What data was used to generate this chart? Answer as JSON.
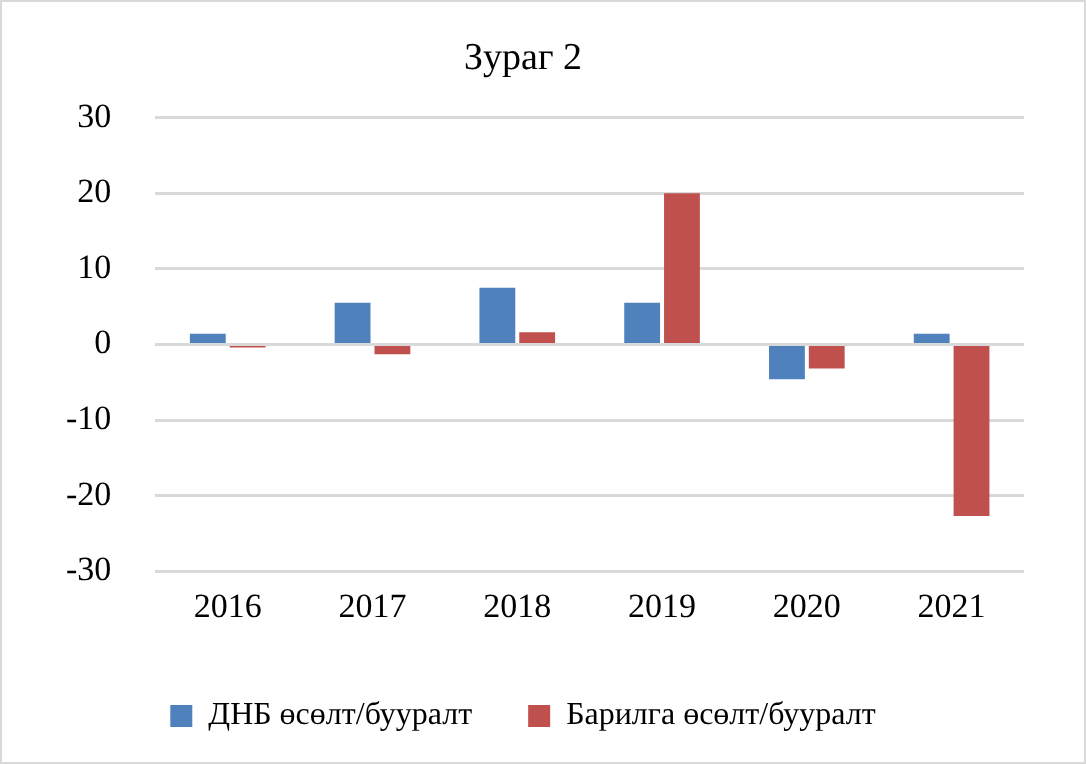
{
  "chart_data": {
    "type": "bar",
    "title": "Зураг 2",
    "categories": [
      "2016",
      "2017",
      "2018",
      "2019",
      "2020",
      "2021"
    ],
    "series": [
      {
        "name": "ДНБ өсөлт/бууралт",
        "color": "#4f81bd",
        "values": [
          1.4,
          5.5,
          7.5,
          5.5,
          -4.6,
          1.4
        ]
      },
      {
        "name": "Барилга өсөлт/бууралт",
        "color": "#c0504d",
        "values": [
          -0.4,
          -1.3,
          1.6,
          20,
          -3.2,
          -22.7
        ]
      }
    ],
    "ylim": [
      -30,
      30
    ],
    "yticks": [
      -30,
      -20,
      -10,
      0,
      10,
      20,
      30
    ],
    "grid": "y",
    "legend": "bottom"
  }
}
